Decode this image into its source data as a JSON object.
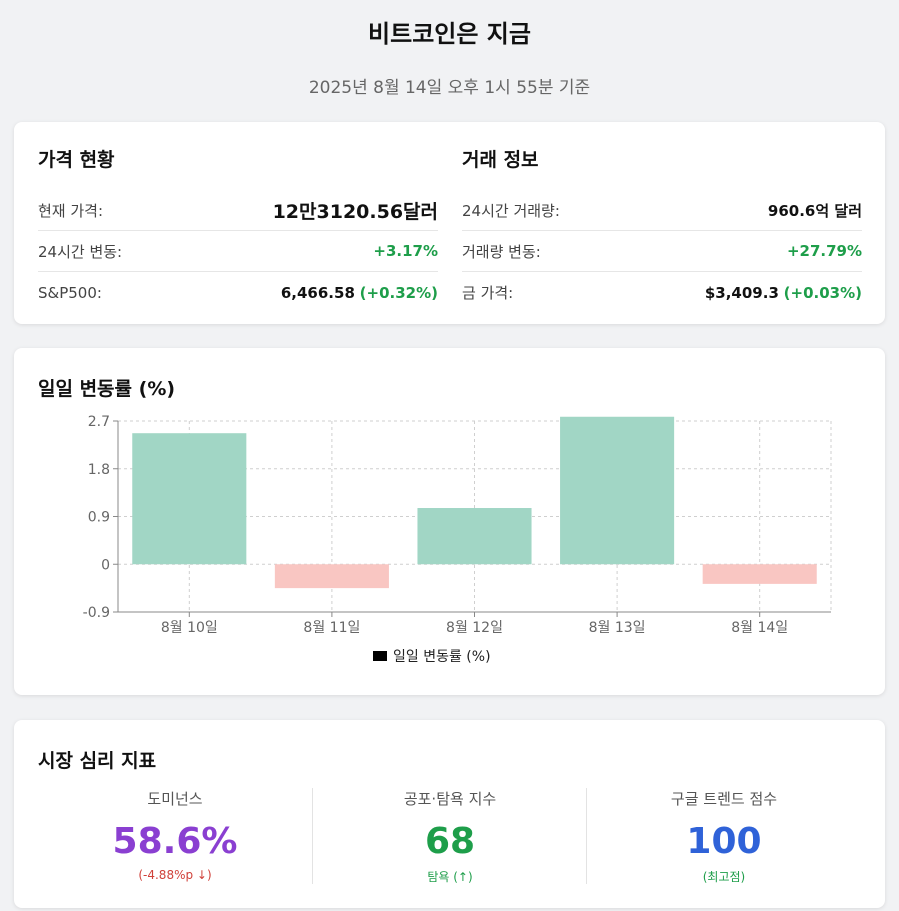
{
  "header": {
    "title": "비트코인은 지금",
    "subtitle": "2025년 8월 14일 오후 1시 55분 기준"
  },
  "price_section": {
    "title": "가격 현황",
    "rows": [
      {
        "label": "현재 가격:",
        "value": "12만3120.56달러"
      },
      {
        "label": "24시간 변동:",
        "value": "+3.17%"
      },
      {
        "label": "S&P500:",
        "value": "6,466.58",
        "change": "(+0.32%)"
      }
    ]
  },
  "trade_section": {
    "title": "거래 정보",
    "rows": [
      {
        "label": "24시간 거래량:",
        "value": "960.6억 달러"
      },
      {
        "label": "거래량 변동:",
        "value": "+27.79%"
      },
      {
        "label": "금 가격:",
        "value": "$3,409.3",
        "change": "(+0.03%)"
      }
    ]
  },
  "chart_section": {
    "title": "일일 변동률 (%)"
  },
  "chart_data": {
    "type": "bar",
    "categories": [
      "8월 10일",
      "8월 11일",
      "8월 12일",
      "8월 13일",
      "8월 14일"
    ],
    "values": [
      2.47,
      -0.45,
      1.06,
      2.78,
      -0.37
    ],
    "ylim": [
      -0.9,
      2.7
    ],
    "yticks": [
      "2.7",
      "1.8",
      "0.9",
      "0",
      "-0.9"
    ],
    "ytick_values": [
      2.7,
      1.8,
      0.9,
      0,
      -0.9
    ],
    "grid": true,
    "legend": "bottom-center",
    "series": [
      {
        "name": "일일 변동률 (%)"
      }
    ],
    "colors": {
      "positive": "#a1d6c5",
      "negative": "#f9c6c2",
      "legend_swatch": "#000000"
    }
  },
  "sentiment": {
    "title": "시장 심리 지표",
    "items": [
      {
        "label": "도미넌스",
        "value": "58.6%",
        "sub": "(-4.88%p ↓)",
        "color": "#8a3fd1",
        "sub_color": "#d0413a"
      },
      {
        "label": "공포·탐욕 지수",
        "value": "68",
        "sub": "탐욕 (↑)",
        "color": "#1e9e4a",
        "sub_color": "#1e9e4a"
      },
      {
        "label": "구글 트렌드 점수",
        "value": "100",
        "sub": "(최고점)",
        "color": "#2f62d8",
        "sub_color": "#1e9e4a"
      }
    ]
  }
}
